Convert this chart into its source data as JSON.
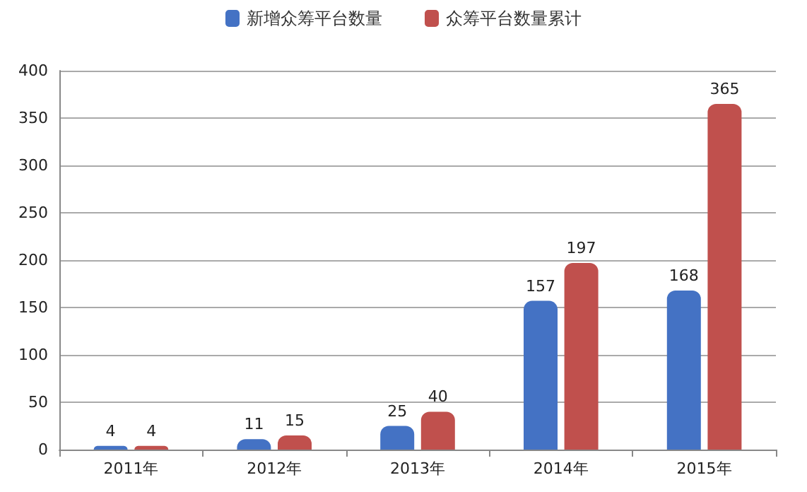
{
  "chart_data": {
    "type": "bar",
    "categories": [
      "2011年",
      "2012年",
      "2013年",
      "2014年",
      "2015年"
    ],
    "series": [
      {
        "name": "新增众筹平台数量",
        "color": "#4472c4",
        "values": [
          4,
          11,
          25,
          157,
          168
        ]
      },
      {
        "name": "众筹平台数量累计",
        "color": "#c0504d",
        "values": [
          4,
          15,
          40,
          197,
          365
        ]
      }
    ],
    "ylim": [
      0,
      400
    ],
    "yticks": [
      0,
      50,
      100,
      150,
      200,
      250,
      300,
      350,
      400
    ],
    "grid": "y",
    "legend": "top",
    "data_labels": true
  }
}
